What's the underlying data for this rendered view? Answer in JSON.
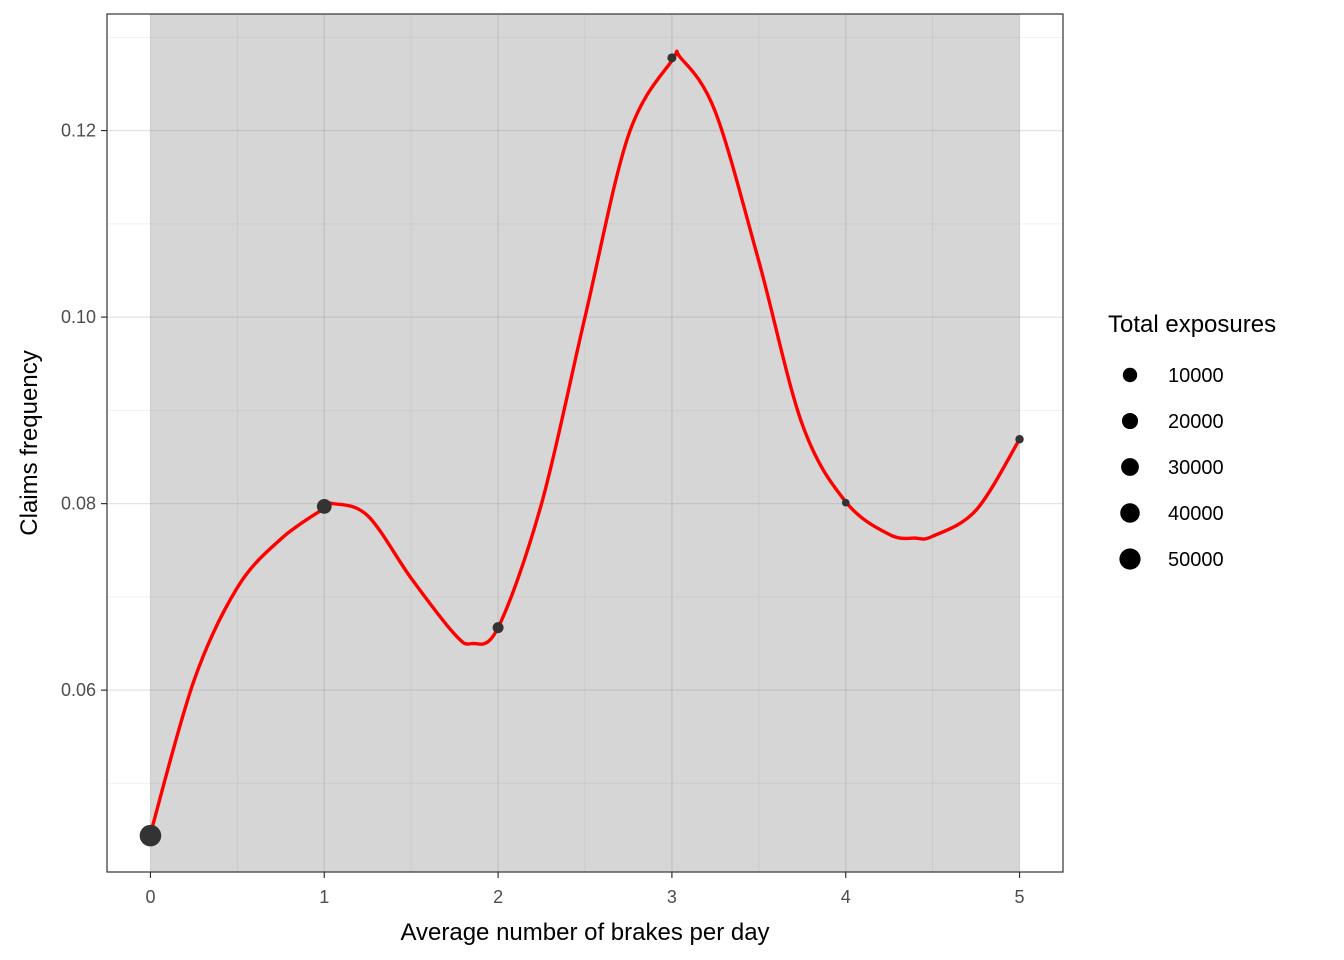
{
  "chart_data": {
    "type": "scatter",
    "title": "",
    "xlabel": "Average number of brakes per day",
    "ylabel": "Claims frequency",
    "xlim": [
      -0.25,
      5.25
    ],
    "ylim": [
      0.0405,
      0.1325
    ],
    "x_ticks": [
      0,
      1,
      2,
      3,
      4,
      5
    ],
    "x_tick_labels": [
      "0",
      "1",
      "2",
      "3",
      "4",
      "5"
    ],
    "y_ticks": [
      0.06,
      0.08,
      0.1,
      0.12
    ],
    "y_tick_labels": [
      "0.06",
      "0.08",
      "0.10",
      "0.12"
    ],
    "grid": true,
    "shaded_band": {
      "x_from": 0,
      "x_to": 5,
      "color": "#d6d6d6"
    },
    "points": [
      {
        "x": 0,
        "y": 0.0444,
        "exposure": 55000
      },
      {
        "x": 1,
        "y": 0.0797,
        "exposure": 20000
      },
      {
        "x": 2,
        "y": 0.0667,
        "exposure": 8000
      },
      {
        "x": 3,
        "y": 0.1278,
        "exposure": 4000
      },
      {
        "x": 4,
        "y": 0.0801,
        "exposure": 2000
      },
      {
        "x": 5,
        "y": 0.0869,
        "exposure": 3000
      }
    ],
    "point_color": "#333333",
    "smooth_line": {
      "color": "#ff0000",
      "x": [
        0,
        0.25,
        0.5,
        0.75,
        1,
        1.05,
        1.25,
        1.5,
        1.75,
        1.85,
        2,
        2.25,
        2.5,
        2.75,
        3,
        3.05,
        3.25,
        3.5,
        3.75,
        4,
        4.25,
        4.4,
        4.5,
        4.75,
        5
      ],
      "y": [
        0.0446,
        0.061,
        0.071,
        0.0762,
        0.0795,
        0.08,
        0.0787,
        0.072,
        0.066,
        0.065,
        0.0667,
        0.08,
        0.1,
        0.1195,
        0.1275,
        0.1278,
        0.122,
        0.106,
        0.0885,
        0.0802,
        0.0767,
        0.0763,
        0.0765,
        0.0793,
        0.0869
      ]
    },
    "legend": {
      "title": "Total exposures",
      "placement": "right",
      "entries": [
        {
          "label": "10000",
          "value": 10000
        },
        {
          "label": "20000",
          "value": 20000
        },
        {
          "label": "30000",
          "value": 30000
        },
        {
          "label": "40000",
          "value": 40000
        },
        {
          "label": "50000",
          "value": 50000
        }
      ]
    }
  }
}
